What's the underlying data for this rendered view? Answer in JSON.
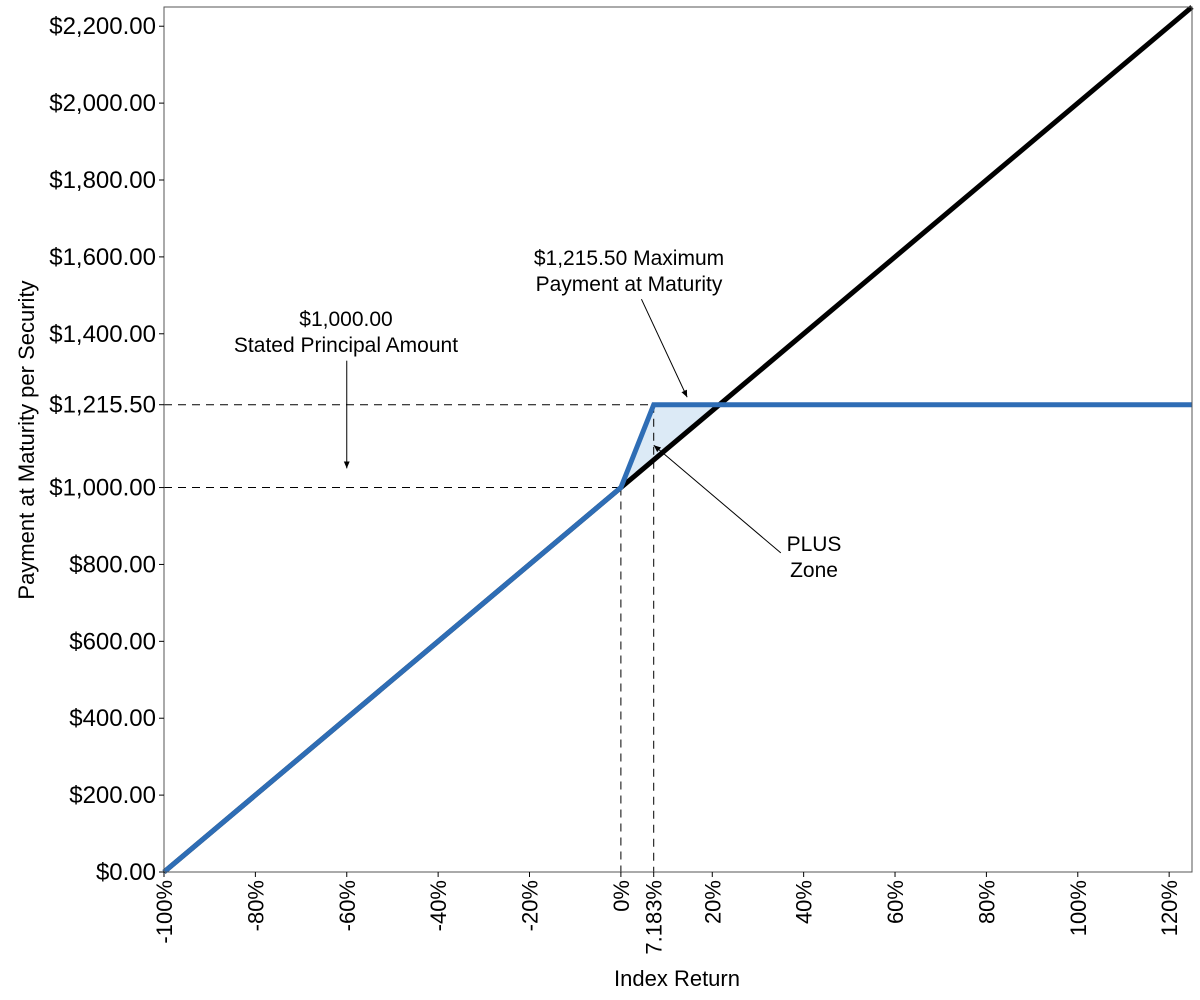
{
  "chart_data": {
    "type": "line",
    "xlabel": "Index Return",
    "ylabel": "Payment at Maturity per Security",
    "xlim": [
      -100,
      125
    ],
    "ylim": [
      0,
      2250
    ],
    "grid": false,
    "x_ticks": [
      {
        "value": -100,
        "label": "-100%"
      },
      {
        "value": -80,
        "label": "-80%"
      },
      {
        "value": -60,
        "label": "-60%"
      },
      {
        "value": -40,
        "label": "-40%"
      },
      {
        "value": -20,
        "label": "-20%"
      },
      {
        "value": 0,
        "label": "0%"
      },
      {
        "value": 7.183,
        "label": "7.183%"
      },
      {
        "value": 20,
        "label": "20%"
      },
      {
        "value": 40,
        "label": "40%"
      },
      {
        "value": 60,
        "label": "60%"
      },
      {
        "value": 80,
        "label": "80%"
      },
      {
        "value": 100,
        "label": "100%"
      },
      {
        "value": 120,
        "label": "120%"
      }
    ],
    "y_ticks": [
      {
        "value": 0,
        "label": "$0.00"
      },
      {
        "value": 200,
        "label": "$200.00"
      },
      {
        "value": 400,
        "label": "$400.00"
      },
      {
        "value": 600,
        "label": "$600.00"
      },
      {
        "value": 800,
        "label": "$800.00"
      },
      {
        "value": 1000,
        "label": "$1,000.00"
      },
      {
        "value": 1215.5,
        "label": "$1,215.50"
      },
      {
        "value": 1400,
        "label": "$1,400.00"
      },
      {
        "value": 1600,
        "label": "$1,600.00"
      },
      {
        "value": 1800,
        "label": "$1,800.00"
      },
      {
        "value": 2000,
        "label": "$2,000.00"
      },
      {
        "value": 2200,
        "label": "$2,200.00"
      }
    ],
    "series": [
      {
        "color": "#000000",
        "x": [
          -100,
          125
        ],
        "y": [
          0,
          2250
        ]
      },
      {
        "color": "#2e6db5",
        "x": [
          -100,
          0,
          7.183,
          125
        ],
        "y": [
          0,
          1000,
          1215.5,
          1215.5
        ]
      }
    ],
    "zone": {
      "x": [
        0,
        7.183,
        21.55
      ],
      "y": [
        1000,
        1215.5,
        1215.5
      ],
      "fill": "#dceaf6"
    },
    "reference_lines": {
      "horizontal": [
        {
          "y": 1000,
          "x_to": 0
        },
        {
          "y": 1215.5,
          "x_to": 7.183
        }
      ],
      "vertical": [
        {
          "x": 0,
          "y_to": 1000
        },
        {
          "x": 7.183,
          "y_to": 1215.5
        }
      ]
    },
    "annotations": [
      {
        "id": "principal",
        "lines": [
          "$1,000.00",
          "Stated Principal Amount"
        ],
        "arrow_from": [
          -60,
          1330
        ],
        "arrow_to": [
          -60,
          1050
        ]
      },
      {
        "id": "maximum",
        "lines": [
          "$1,215.50 Maximum",
          "Payment at Maturity"
        ],
        "arrow_from": [
          4.5,
          1490
        ],
        "arrow_to": [
          14.5,
          1235
        ]
      },
      {
        "id": "plus-zone",
        "lines": [
          "PLUS",
          "Zone"
        ],
        "arrow_from": [
          35,
          830
        ],
        "arrow_to": [
          7.2,
          1110
        ]
      }
    ]
  }
}
